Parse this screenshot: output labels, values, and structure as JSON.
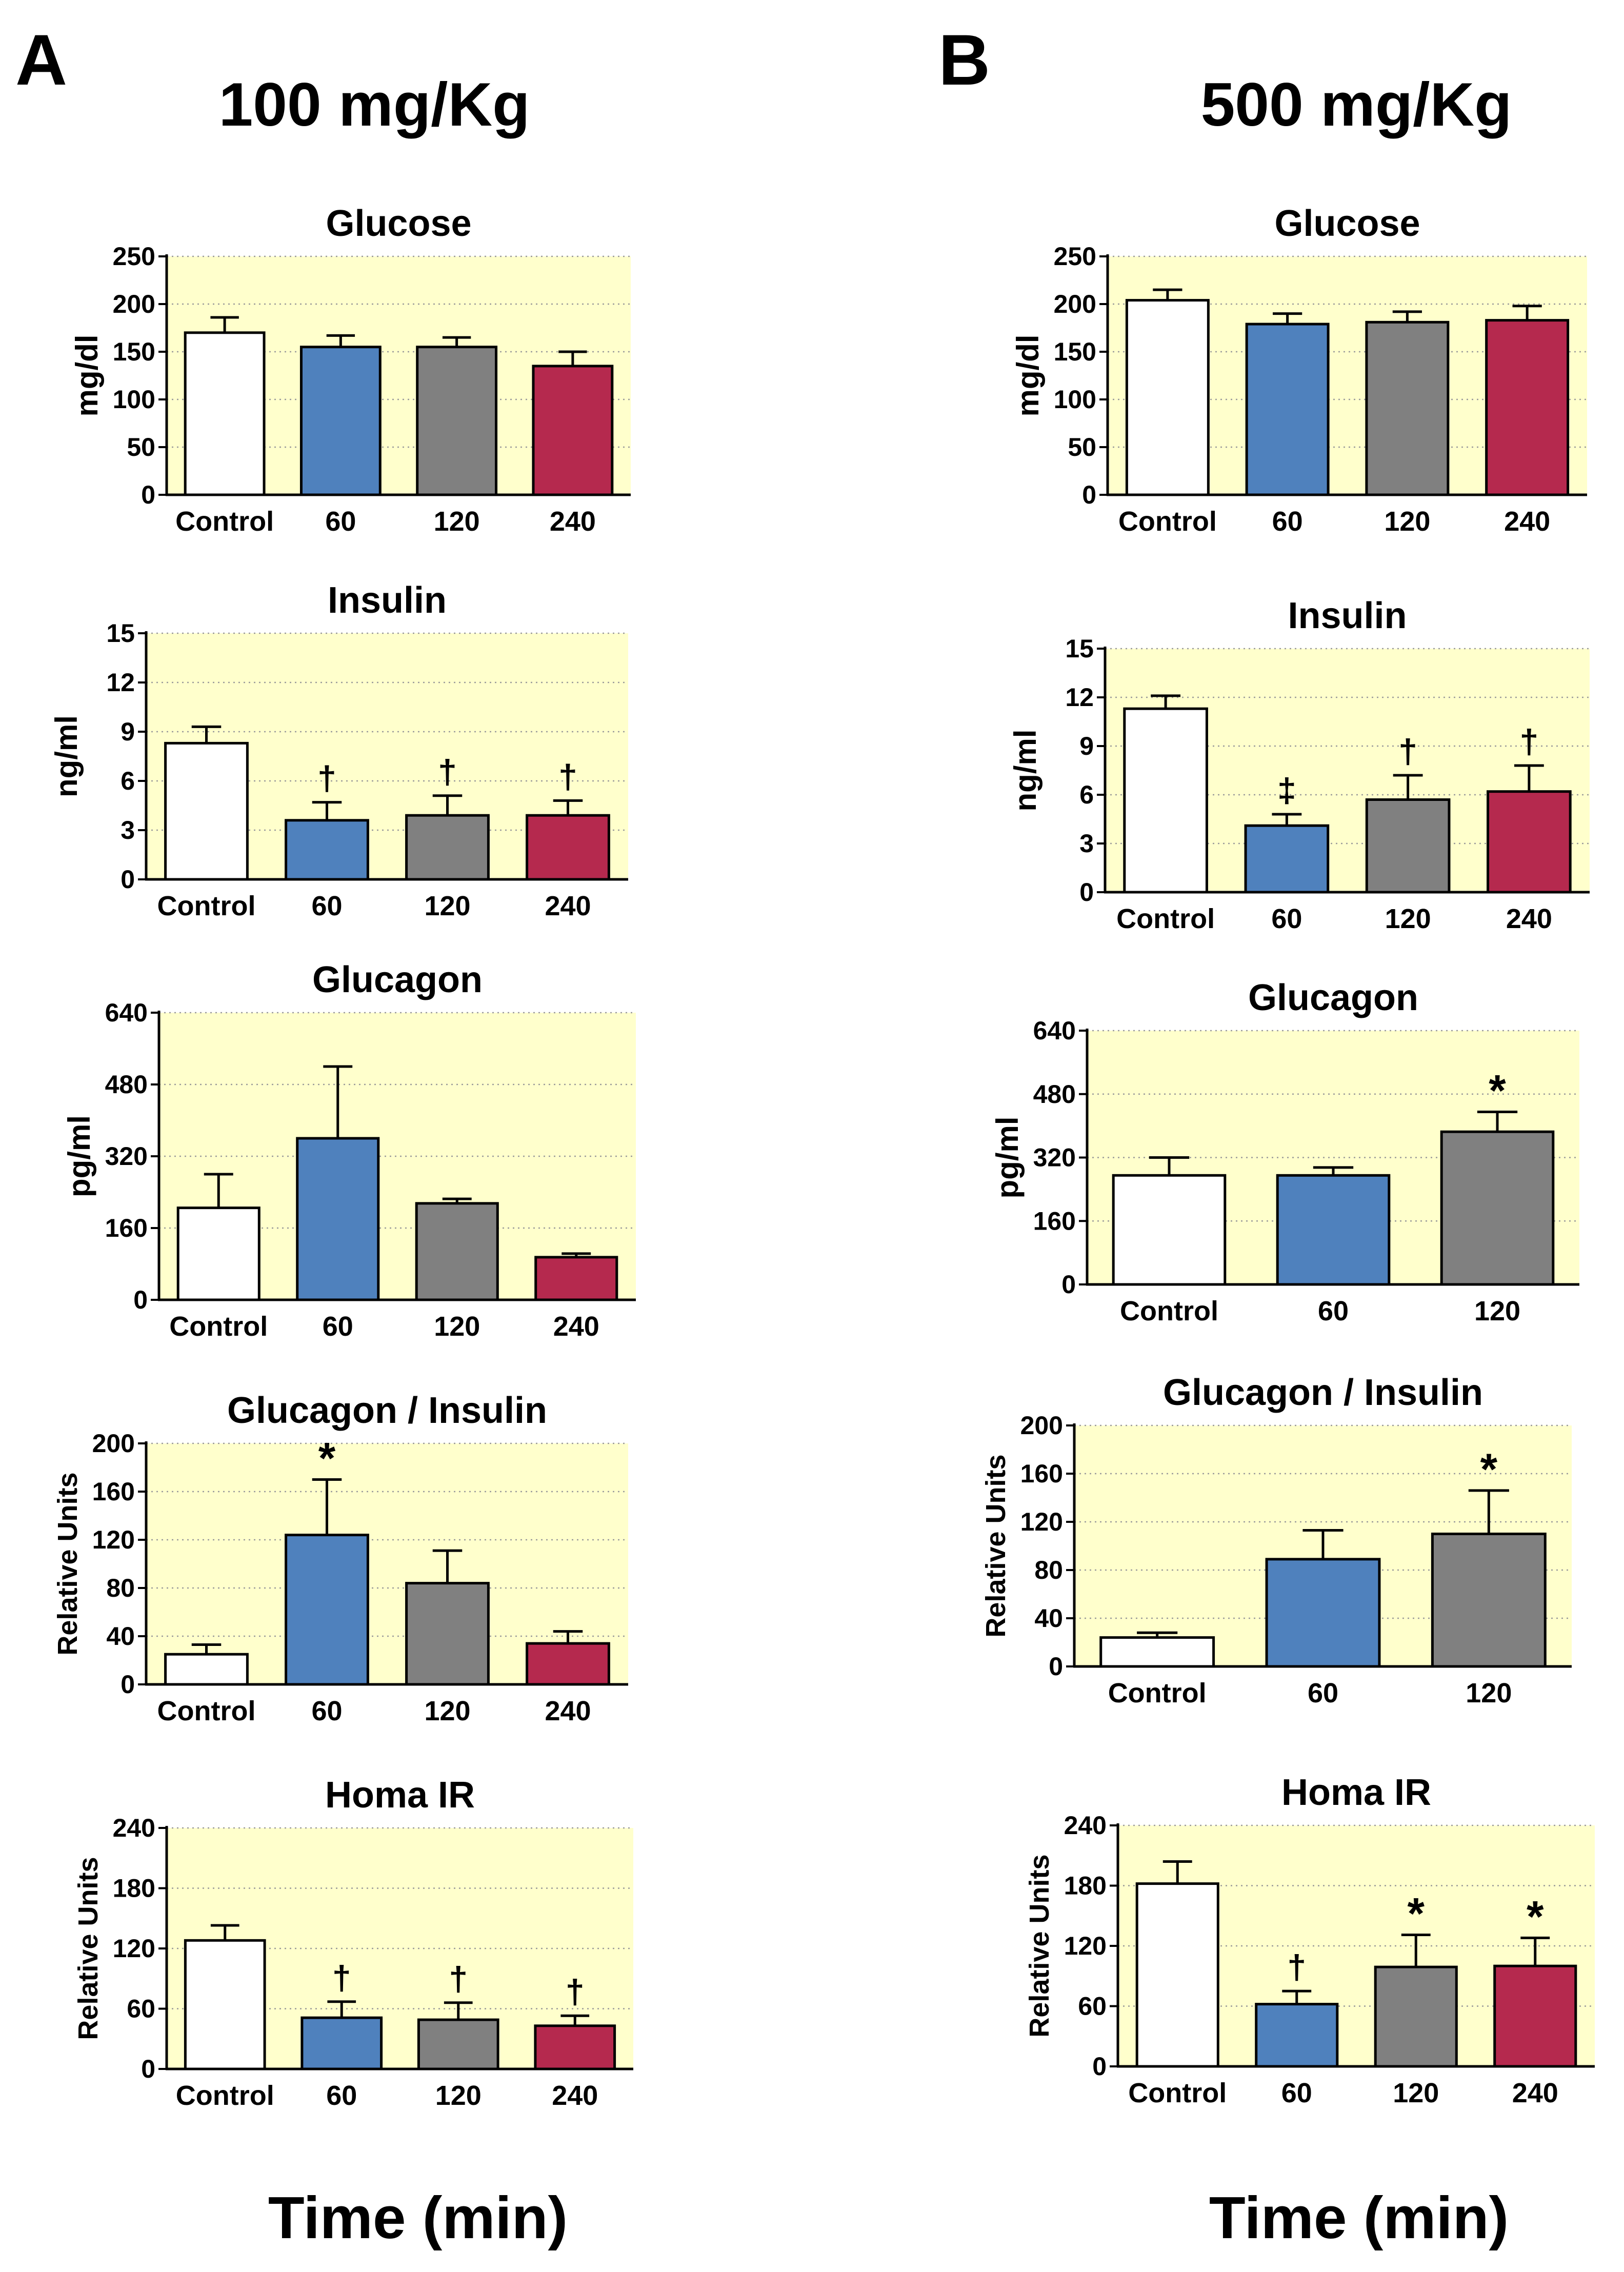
{
  "panels": [
    {
      "letter": "A",
      "dose": "100 mg/Kg",
      "xlabel": "Time (min)"
    },
    {
      "letter": "B",
      "dose": "500 mg/Kg",
      "xlabel": "Time (min)"
    }
  ],
  "colors": {
    "plot_bg": "#ffffcc",
    "Control": "#ffffff",
    "60": "#4f81bd",
    "120": "#808080",
    "240": "#b5294e"
  },
  "chart_data": [
    {
      "type": "bar",
      "panel": "A",
      "title": "Glucose",
      "ylabel": "mg/dl",
      "ylim": [
        0,
        250
      ],
      "yticks": [
        0,
        50,
        100,
        150,
        200,
        250
      ],
      "categories": [
        "Control",
        "60",
        "120",
        "240"
      ],
      "values": [
        170,
        155,
        155,
        135
      ],
      "errors": [
        16,
        12,
        10,
        15
      ],
      "annotations": [
        "",
        "",
        "",
        ""
      ]
    },
    {
      "type": "bar",
      "panel": "A",
      "title": "Insulin",
      "ylabel": "ng/ml",
      "ylim": [
        0,
        15
      ],
      "yticks": [
        0,
        3,
        6,
        9,
        12,
        15
      ],
      "categories": [
        "Control",
        "60",
        "120",
        "240"
      ],
      "values": [
        8.3,
        3.6,
        3.9,
        3.9
      ],
      "errors": [
        1.0,
        1.1,
        1.2,
        0.9
      ],
      "annotations": [
        "",
        "†",
        "†",
        "†"
      ]
    },
    {
      "type": "bar",
      "panel": "A",
      "title": "Glucagon",
      "ylabel": "pg/ml",
      "ylim": [
        0,
        640
      ],
      "yticks": [
        0,
        160,
        320,
        480,
        640
      ],
      "categories": [
        "Control",
        "60",
        "120",
        "240"
      ],
      "values": [
        205,
        360,
        215,
        95
      ],
      "errors": [
        75,
        160,
        10,
        8
      ],
      "annotations": [
        "",
        "",
        "",
        ""
      ]
    },
    {
      "type": "bar",
      "panel": "A",
      "title": "Glucagon / Insulin",
      "ylabel": "Relative Units",
      "ylim": [
        0,
        200
      ],
      "yticks": [
        0,
        40,
        80,
        120,
        160,
        200
      ],
      "categories": [
        "Control",
        "60",
        "120",
        "240"
      ],
      "values": [
        25,
        124,
        84,
        34
      ],
      "errors": [
        8,
        46,
        27,
        10
      ],
      "annotations": [
        "",
        "*",
        "",
        ""
      ]
    },
    {
      "type": "bar",
      "panel": "A",
      "title": "Homa IR",
      "ylabel": "Relative Units",
      "ylim": [
        0,
        240
      ],
      "yticks": [
        0,
        60,
        120,
        180,
        240
      ],
      "categories": [
        "Control",
        "60",
        "120",
        "240"
      ],
      "values": [
        128,
        51,
        49,
        43
      ],
      "errors": [
        15,
        16,
        17,
        10
      ],
      "annotations": [
        "",
        "†",
        "†",
        "†"
      ]
    },
    {
      "type": "bar",
      "panel": "B",
      "title": "Glucose",
      "ylabel": "mg/dl",
      "ylim": [
        0,
        250
      ],
      "yticks": [
        0,
        50,
        100,
        150,
        200,
        250
      ],
      "categories": [
        "Control",
        "60",
        "120",
        "240"
      ],
      "values": [
        204,
        179,
        181,
        183
      ],
      "errors": [
        11,
        11,
        11,
        15
      ],
      "annotations": [
        "",
        "",
        "",
        ""
      ]
    },
    {
      "type": "bar",
      "panel": "B",
      "title": "Insulin",
      "ylabel": "ng/ml",
      "ylim": [
        0,
        15
      ],
      "yticks": [
        0,
        3,
        6,
        9,
        12,
        15
      ],
      "categories": [
        "Control",
        "60",
        "120",
        "240"
      ],
      "values": [
        11.3,
        4.1,
        5.7,
        6.2
      ],
      "errors": [
        0.8,
        0.7,
        1.5,
        1.6
      ],
      "annotations": [
        "",
        "‡",
        "†",
        "†"
      ]
    },
    {
      "type": "bar",
      "panel": "B",
      "title": "Glucagon",
      "ylabel": "pg/ml",
      "ylim": [
        0,
        640
      ],
      "yticks": [
        0,
        160,
        320,
        480,
        640
      ],
      "categories": [
        "Control",
        "60",
        "120"
      ],
      "values": [
        275,
        275,
        385
      ],
      "errors": [
        45,
        20,
        50
      ],
      "annotations": [
        "",
        "",
        "*"
      ]
    },
    {
      "type": "bar",
      "panel": "B",
      "title": "Glucagon / Insulin",
      "ylabel": "Relative Units",
      "ylim": [
        0,
        200
      ],
      "yticks": [
        0,
        40,
        80,
        120,
        160,
        200
      ],
      "categories": [
        "Control",
        "60",
        "120"
      ],
      "values": [
        24,
        89,
        110
      ],
      "errors": [
        4,
        24,
        36
      ],
      "annotations": [
        "",
        "",
        "*"
      ]
    },
    {
      "type": "bar",
      "panel": "B",
      "title": "Homa IR",
      "ylabel": "Relative Units",
      "ylim": [
        0,
        240
      ],
      "yticks": [
        0,
        60,
        120,
        180,
        240
      ],
      "categories": [
        "Control",
        "60",
        "120",
        "240"
      ],
      "values": [
        182,
        62,
        99,
        100
      ],
      "errors": [
        22,
        13,
        32,
        28
      ],
      "annotations": [
        "",
        "†",
        "*",
        "*"
      ]
    }
  ]
}
